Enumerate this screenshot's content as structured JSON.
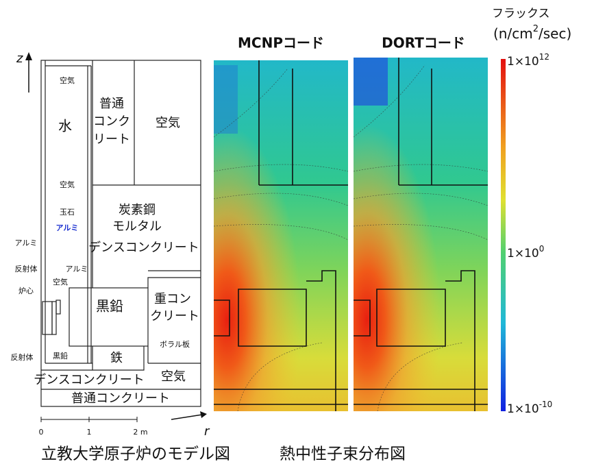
{
  "titles": [
    "MCNPコード",
    "DORTコード"
  ],
  "colorbar": {
    "title": "フラックス",
    "unit": [
      "(n/cm",
      "2",
      "/sec)"
    ],
    "ticks": [
      {
        "base": "1×10",
        "exp": "12"
      },
      {
        "base": "1×10",
        "exp": "0"
      },
      {
        "base": "1×10",
        "exp": "-10"
      }
    ]
  },
  "model": {
    "axes": {
      "z": "z",
      "r": "r",
      "scale": [
        "0",
        "1",
        "2 m"
      ]
    },
    "labels": [
      "空気",
      "水",
      "普通",
      "コンク",
      "リート",
      "空気",
      "空気",
      "玉石",
      "アルミ",
      "炭素鋼",
      "モルタル",
      "デンスコンクリート",
      "アルミ",
      "反射体",
      "炉心",
      "アルミ",
      "空気",
      "黒鉛",
      "重コン",
      "クリート",
      "ボラル板",
      "反射体",
      "黒鉛",
      "鉄",
      "デンスコンクリート",
      "空気",
      "普通コンクリート"
    ]
  },
  "captions": [
    "立教大学原子炉のモデル図",
    "熱中性子束分布図"
  ]
}
